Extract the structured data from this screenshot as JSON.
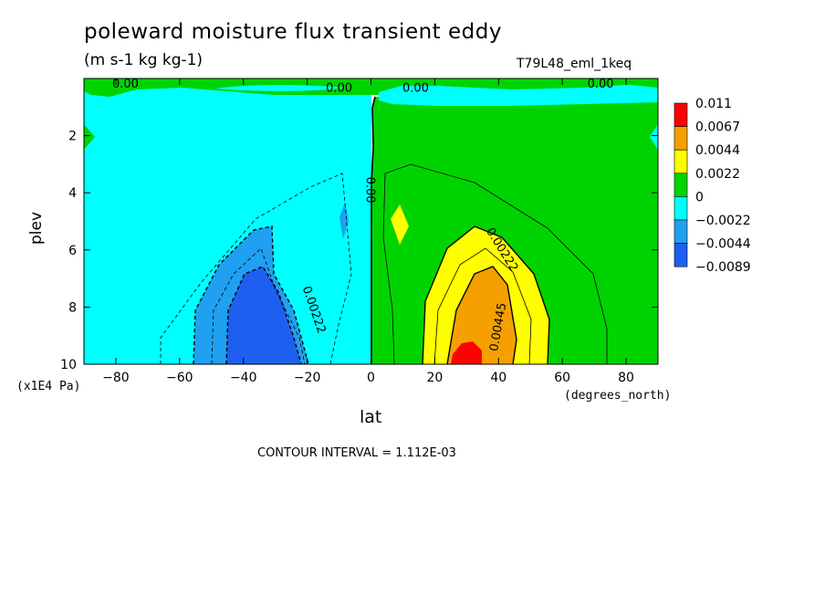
{
  "chart_data": {
    "type": "heatmap",
    "title": "poleward moisture flux transient eddy",
    "units": "(m s-1 kg kg-1)",
    "run_label": "T79L48_eml_1keq",
    "xlabel": "lat",
    "xunit": "(degrees_north)",
    "ylabel": "plev",
    "yunit": "(x1E4 Pa)",
    "xlim": [
      -90,
      90
    ],
    "ylim": [
      10,
      0
    ],
    "x_ticks": [
      -80,
      -60,
      -40,
      -20,
      0,
      20,
      40,
      60,
      80
    ],
    "x_tick_labels": [
      "−80",
      "−60",
      "−40",
      "−20",
      "0",
      "20",
      "40",
      "60",
      "80"
    ],
    "y_ticks": [
      2,
      4,
      6,
      8,
      10
    ],
    "y_tick_labels": [
      "2",
      "4",
      "6",
      "8",
      "10"
    ],
    "contour_interval_text": "CONTOUR INTERVAL = 1.112E-03",
    "contour_labels": [
      {
        "text": "0.00",
        "lat": -77,
        "plev": 0.2
      },
      {
        "text": "0.00",
        "lat": -10,
        "plev": 0.35
      },
      {
        "text": "0.00",
        "lat": 14,
        "plev": 0.35
      },
      {
        "text": "0.00",
        "lat": 72,
        "plev": 0.2
      },
      {
        "text": "0.00",
        "lat": -0.5,
        "plev": 3.9
      },
      {
        "text": "0.00222",
        "lat": -18,
        "plev": 8.1
      },
      {
        "text": "0.00222",
        "lat": 41,
        "plev": 6.0
      },
      {
        "text": "0.00445",
        "lat": 40,
        "plev": 8.7
      }
    ],
    "colorbar": {
      "levels": [
        "0.011",
        "0.0067",
        "0.0044",
        "0.0022",
        "0",
        "−0.0022",
        "−0.0044",
        "−0.0089"
      ],
      "colors": [
        "#ff0000",
        "#f5a000",
        "#ffff00",
        "#00d400",
        "#00ffff",
        "#1fa0f0",
        "#1e5ff0"
      ]
    },
    "regions": [
      {
        "level": "0 to 0.0022",
        "color": "#00d400",
        "description": "northern hemisphere and upper level band"
      },
      {
        "level": "-0.0022 to 0",
        "color": "#00ffff",
        "description": "southern hemisphere"
      },
      {
        "level": "-0.0044 to -0.0022",
        "color": "#1fa0f0",
        "center": [
          -35,
          8.5
        ]
      },
      {
        "level": "-0.0089 to -0.0044",
        "color": "#1e5ff0",
        "center": [
          -35,
          9
        ]
      },
      {
        "level": "0.0022 to 0.0044",
        "color": "#ffff00",
        "center": [
          35,
          8.5
        ]
      },
      {
        "level": "0.0044 to 0.0067",
        "color": "#f5a000",
        "center": [
          36,
          9
        ]
      },
      {
        "level": "0.0067 to 0.011",
        "color": "#ff0000",
        "center": [
          31,
          9.7
        ]
      }
    ]
  }
}
